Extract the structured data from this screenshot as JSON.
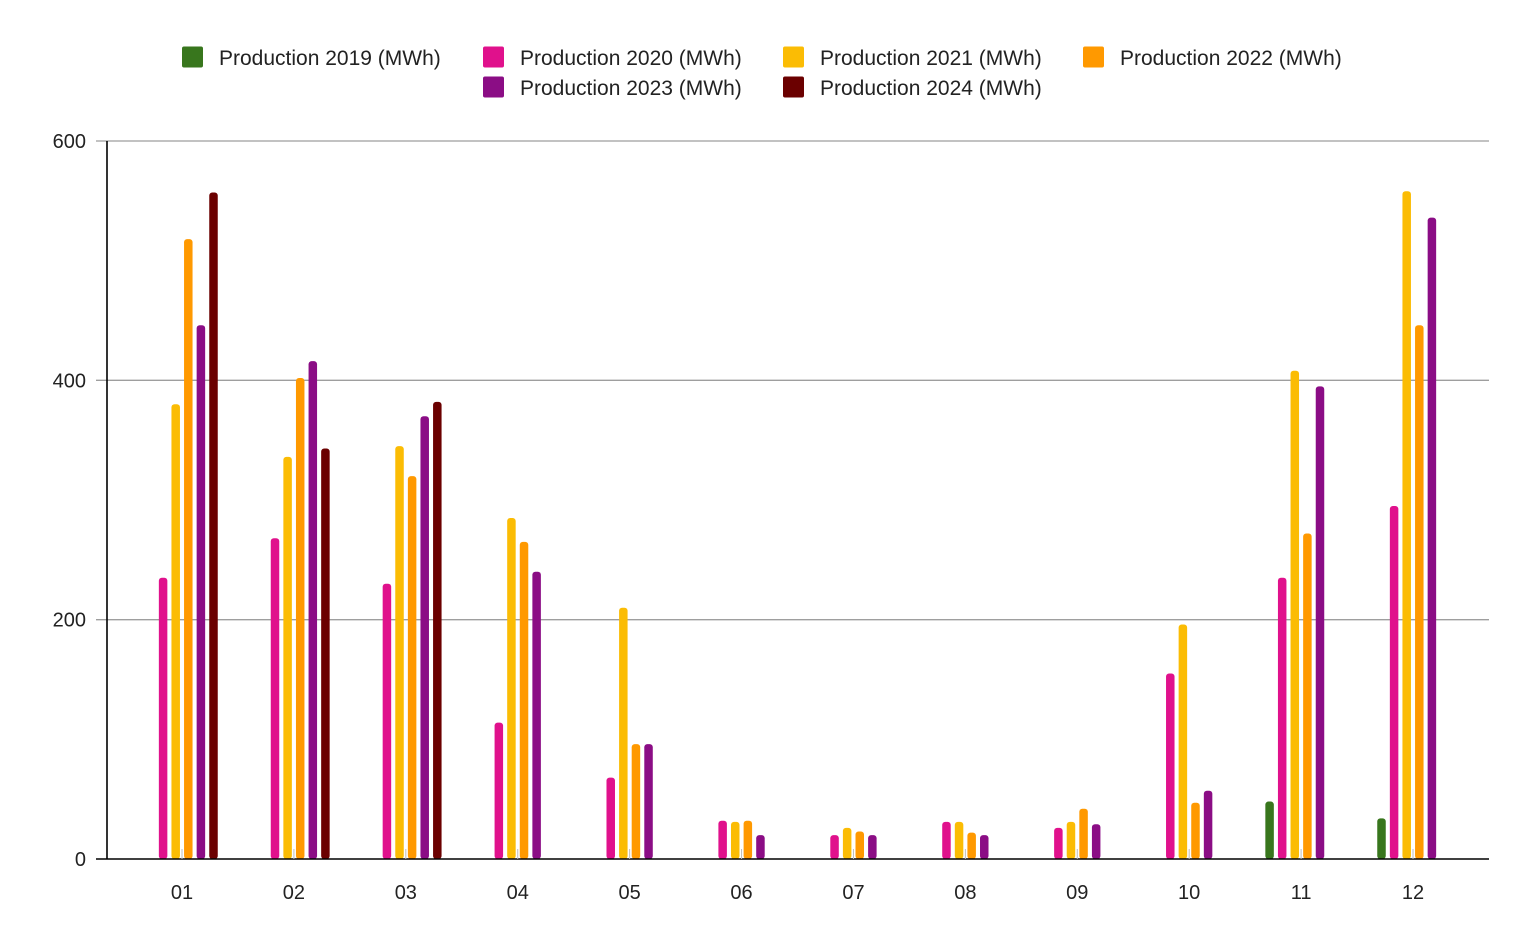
{
  "chart_data": {
    "type": "bar",
    "categories": [
      "01",
      "02",
      "03",
      "04",
      "05",
      "06",
      "07",
      "08",
      "09",
      "10",
      "11",
      "12"
    ],
    "ylim": [
      0,
      600
    ],
    "yticks": [
      0,
      200,
      400,
      600
    ],
    "grid": true,
    "legend_position": "top",
    "series": [
      {
        "name": "Production 2019 (MWh)",
        "color": "#38761d",
        "values": [
          null,
          null,
          null,
          null,
          null,
          null,
          null,
          null,
          null,
          null,
          48,
          34
        ]
      },
      {
        "name": "Production 2020 (MWh)",
        "color": "#e0118c",
        "values": [
          235,
          268,
          230,
          114,
          68,
          32,
          20,
          31,
          26,
          155,
          235,
          295
        ]
      },
      {
        "name": "Production 2021 (MWh)",
        "color": "#fbbc04",
        "values": [
          380,
          336,
          345,
          285,
          210,
          31,
          26,
          31,
          31,
          196,
          408,
          558
        ]
      },
      {
        "name": "Production 2022 (MWh)",
        "color": "#ff9900",
        "values": [
          518,
          402,
          320,
          265,
          96,
          32,
          23,
          22,
          42,
          47,
          272,
          446
        ]
      },
      {
        "name": "Production 2023 (MWh)",
        "color": "#8b0d85",
        "values": [
          446,
          416,
          370,
          240,
          96,
          20,
          20,
          20,
          29,
          57,
          395,
          536
        ]
      },
      {
        "name": "Production 2024 (MWh)",
        "color": "#6b0000",
        "values": [
          557,
          343,
          382,
          null,
          null,
          null,
          null,
          null,
          null,
          null,
          null,
          null
        ]
      }
    ]
  }
}
